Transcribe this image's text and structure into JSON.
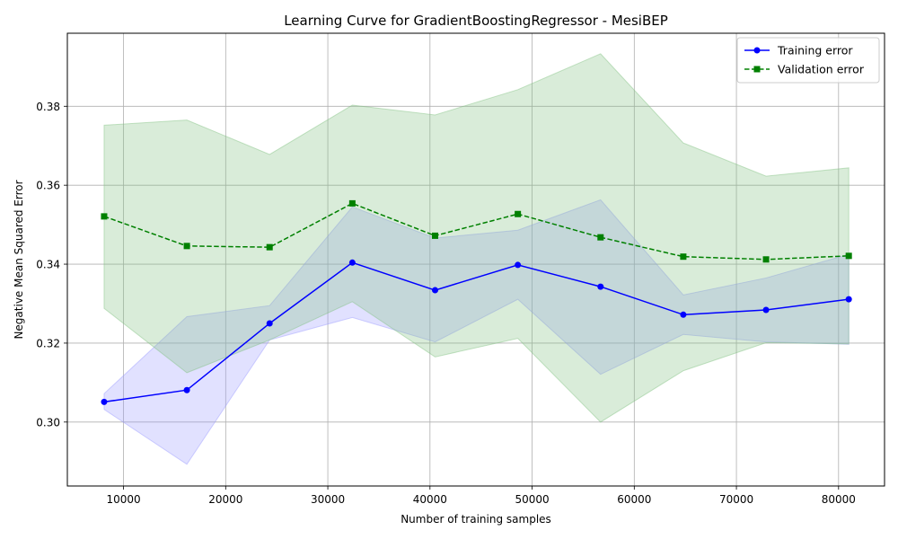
{
  "chart_data": {
    "type": "line",
    "title": "Learning Curve for GradientBoostingRegressor - MesiBEP",
    "xlabel": "Number of training samples",
    "ylabel": "Negative Mean Squared Error",
    "xlim": [
      4500,
      84500
    ],
    "ylim": [
      0.2838,
      0.3985
    ],
    "x_ticks": [
      10000,
      20000,
      30000,
      40000,
      50000,
      60000,
      70000,
      80000
    ],
    "x_tick_labels": [
      "10000",
      "20000",
      "30000",
      "40000",
      "50000",
      "60000",
      "70000",
      "80000"
    ],
    "y_ticks": [
      0.3,
      0.32,
      0.34,
      0.36,
      0.38
    ],
    "y_tick_labels": [
      "0.30",
      "0.32",
      "0.34",
      "0.36",
      "0.38"
    ],
    "grid": true,
    "legend_position": "top-right",
    "x": [
      8100,
      16200,
      24300,
      32400,
      40500,
      48600,
      56700,
      64800,
      72900,
      81000
    ],
    "series": [
      {
        "name": "Training error",
        "color": "#0000ff",
        "band_color": "#9a9aff",
        "marker": "circle",
        "line_style": "solid",
        "values": [
          0.3051,
          0.3081,
          0.325,
          0.3404,
          0.3334,
          0.3398,
          0.3343,
          0.3272,
          0.3284,
          0.3311
        ],
        "band_upper": [
          0.3072,
          0.3267,
          0.3295,
          0.3545,
          0.3466,
          0.3486,
          0.3563,
          0.3322,
          0.3365,
          0.3425
        ],
        "band_lower": [
          0.3032,
          0.2893,
          0.3208,
          0.3265,
          0.3203,
          0.3311,
          0.3121,
          0.3222,
          0.3203,
          0.3197
        ]
      },
      {
        "name": "Validation error",
        "color": "#008000",
        "band_color": "#80c080",
        "marker": "square",
        "line_style": "dashed",
        "values": [
          0.3521,
          0.3446,
          0.3443,
          0.3554,
          0.3472,
          0.3527,
          0.3468,
          0.3419,
          0.3412,
          0.3421
        ],
        "band_upper": [
          0.3752,
          0.3765,
          0.3678,
          0.3803,
          0.3778,
          0.3842,
          0.3933,
          0.3707,
          0.3623,
          0.3644
        ],
        "band_lower": [
          0.3288,
          0.3125,
          0.3208,
          0.3305,
          0.3165,
          0.3212,
          0.3,
          0.313,
          0.3201,
          0.3198
        ]
      }
    ]
  }
}
